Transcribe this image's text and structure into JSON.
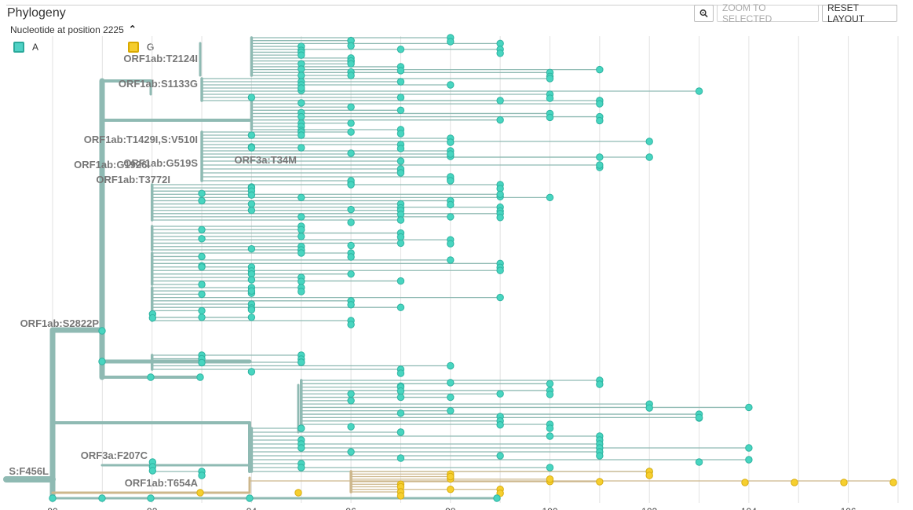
{
  "panel": {
    "title": "Phylogeny",
    "color_by_label": "Nucleotide at position 2225"
  },
  "buttons": {
    "zoom_to_selected": "ZOOM TO SELECTED",
    "reset_layout": "RESET LAYOUT"
  },
  "legend": [
    {
      "label": "A",
      "color": "#4fd1c5"
    },
    {
      "label": "G",
      "color": "#f5cd2e"
    }
  ],
  "colors": {
    "branch_A": "#8fbab3",
    "branch_G": "#cdb78c",
    "tip_A": "#48d5c0",
    "tip_G": "#f6cf2e",
    "grid": "#e2e2e2"
  },
  "axis": {
    "ticks": [
      "90",
      "92",
      "94",
      "96",
      "98",
      "100",
      "102",
      "104",
      "106"
    ]
  },
  "branch_labels": [
    "ORF1ab:T2124I",
    "ORF1ab:S1133G",
    "ORF1ab:T1429I,S:V510I",
    "ORF1ab:G1926I",
    "ORF1ab:G519S",
    "ORF3a:T34M",
    "ORF1ab:T3772I",
    "ORF1ab:S2822P",
    "ORF3a:F207C",
    "ORF1ab:T654A",
    "S:F456L"
  ]
}
